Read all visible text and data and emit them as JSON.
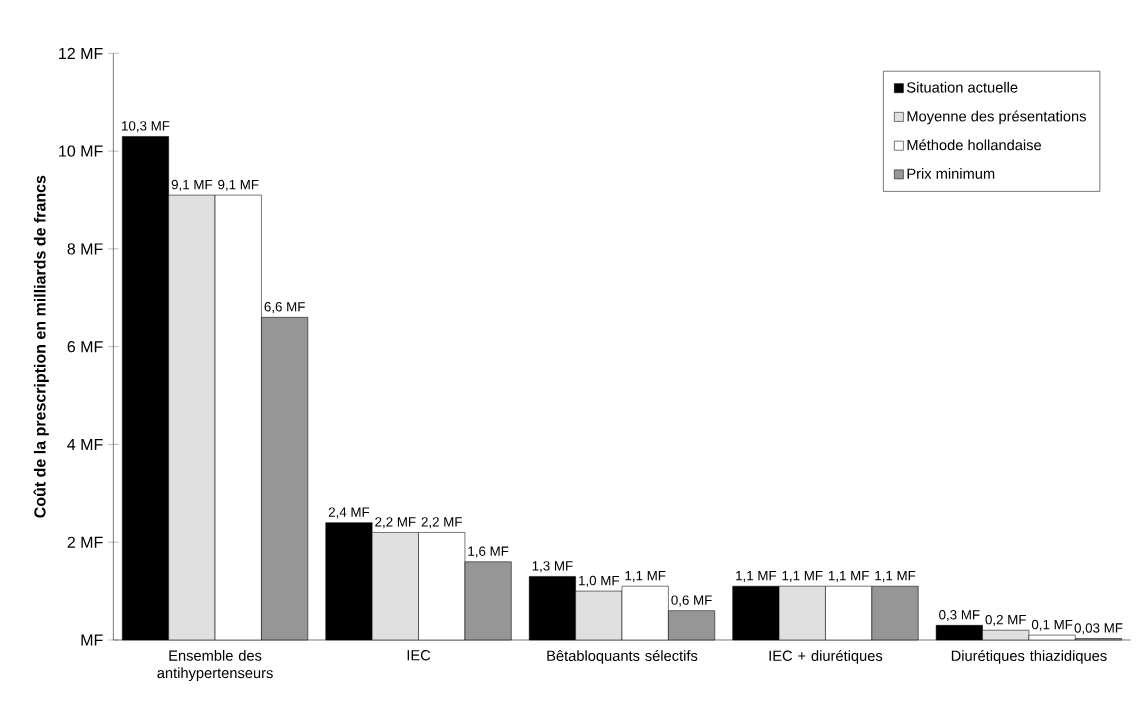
{
  "chart_data": {
    "type": "bar",
    "ylabel": "Coût de la prescription en milliards de francs",
    "categories": [
      "Ensemble des antihypertenseurs",
      "IEC",
      "Bêtabloquants sélectifs",
      "IEC + diurétiques",
      "Diurétiques thiazidiques"
    ],
    "series": [
      {
        "name": "Situation actuelle",
        "color": "#000000",
        "values": [
          10.3,
          2.4,
          1.3,
          1.1,
          0.3
        ],
        "value_labels": [
          "10,3 MF",
          "2,4 MF",
          "1,3 MF",
          "1,1 MF",
          "0,3 MF"
        ]
      },
      {
        "name": "Moyenne des présentations",
        "color": "#e0e0e0",
        "values": [
          9.1,
          2.2,
          1.0,
          1.1,
          0.2
        ],
        "value_labels": [
          "9,1 MF",
          "2,2 MF",
          "1,0 MF",
          "1,1 MF",
          "0,2 MF"
        ]
      },
      {
        "name": "Méthode hollandaise",
        "color": "#ffffff",
        "values": [
          9.1,
          2.2,
          1.1,
          1.1,
          0.1
        ],
        "value_labels": [
          "9,1 MF",
          "2,2 MF",
          "1,1 MF",
          "1,1 MF",
          "0,1 MF"
        ]
      },
      {
        "name": "Prix minimum",
        "color": "#969696",
        "values": [
          6.6,
          1.6,
          0.6,
          1.1,
          0.03
        ],
        "value_labels": [
          "6,6 MF",
          "1,6 MF",
          "0,6 MF",
          "1,1 MF",
          "0,03 MF"
        ]
      }
    ],
    "ylim": [
      0,
      12
    ],
    "yticks": [
      {
        "value": 0,
        "label": "MF"
      },
      {
        "value": 2,
        "label": "2 MF"
      },
      {
        "value": 4,
        "label": "4 MF"
      },
      {
        "value": 6,
        "label": "6 MF"
      },
      {
        "value": 8,
        "label": "8 MF"
      },
      {
        "value": 10,
        "label": "10 MF"
      },
      {
        "value": 12,
        "label": "12 MF"
      }
    ],
    "legend": "top right"
  }
}
